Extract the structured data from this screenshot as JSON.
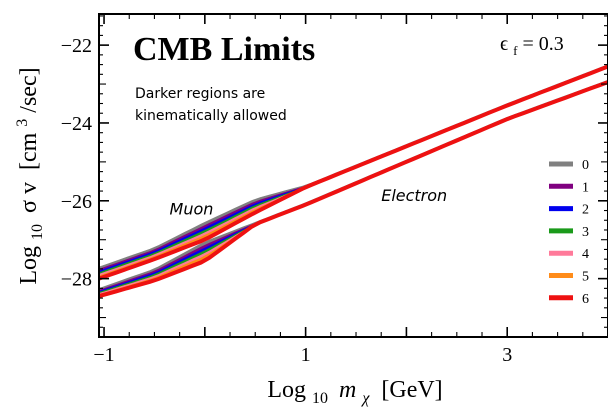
{
  "chart_data": {
    "type": "line",
    "title": "CMB Limits",
    "annotation_param": "ϵ",
    "annotation_param_sub": "f",
    "annotation_value": "= 0.3",
    "note_line1": "Darker regions are",
    "note_line2": "kinematically allowed",
    "region_labels": [
      {
        "text": "Muon",
        "x": -0.35,
        "y": -26.35
      },
      {
        "text": "Electron",
        "x": 1.75,
        "y": -26.0
      }
    ],
    "xlabel_prefix": "Log",
    "xlabel_sub": "10",
    "xlabel_var": "m",
    "xlabel_var_sub": "χ",
    "xlabel_unit": "[GeV]",
    "ylabel_prefix": "Log",
    "ylabel_sub": "10",
    "ylabel_var": "σ v",
    "ylabel_unit": "[cm",
    "ylabel_unit_sup": "3",
    "ylabel_unit_end": "/sec]",
    "xlim": [
      -1.05,
      4.0
    ],
    "ylim": [
      -29.5,
      -21.2
    ],
    "xticks": [
      {
        "value": -1,
        "label": "−1"
      },
      {
        "value": 1,
        "label": "1"
      },
      {
        "value": 3,
        "label": "3"
      }
    ],
    "yticks": [
      {
        "value": -22,
        "label": "−22"
      },
      {
        "value": -24,
        "label": "−24"
      },
      {
        "value": -26,
        "label": "−26"
      },
      {
        "value": -28,
        "label": "−28"
      }
    ],
    "legend_position": "right",
    "series": [
      {
        "name": "0",
        "color": "#808080"
      },
      {
        "name": "1",
        "color": "#800080"
      },
      {
        "name": "2",
        "color": "#0000ee"
      },
      {
        "name": "3",
        "color": "#1a9a1a"
      },
      {
        "name": "4",
        "color": "#ff7a9a"
      },
      {
        "name": "5",
        "color": "#ff8c1a"
      },
      {
        "name": "6",
        "color": "#ee1111"
      }
    ],
    "bands": [
      {
        "name": "Electron",
        "lower": [
          [
            -1.05,
            -28.45
          ],
          [
            -0.5,
            -28.05
          ],
          [
            0.0,
            -27.55
          ],
          [
            0.5,
            -26.6
          ],
          [
            1.0,
            -26.1
          ],
          [
            2.0,
            -25.0
          ],
          [
            3.0,
            -23.9
          ],
          [
            4.0,
            -22.95
          ]
        ],
        "upper": [
          [
            -1.05,
            -28.25
          ],
          [
            -0.5,
            -27.75
          ],
          [
            0.0,
            -27.05
          ],
          [
            0.5,
            -26.55
          ],
          [
            1.0,
            -26.05
          ],
          [
            2.0,
            -24.95
          ],
          [
            3.0,
            -23.85
          ],
          [
            4.0,
            -22.9
          ]
        ],
        "darkest_series": 2,
        "bottom_edge_series": 6
      },
      {
        "name": "Muon",
        "lower": [
          [
            -1.05,
            -28.0
          ],
          [
            -0.5,
            -27.5
          ],
          [
            0.0,
            -27.0
          ],
          [
            0.5,
            -26.3
          ],
          [
            1.0,
            -25.65
          ],
          [
            2.0,
            -24.6
          ],
          [
            3.0,
            -23.55
          ],
          [
            4.0,
            -22.55
          ]
        ],
        "upper": [
          [
            -1.05,
            -27.7
          ],
          [
            -0.5,
            -27.2
          ],
          [
            0.0,
            -26.55
          ],
          [
            0.5,
            -25.95
          ],
          [
            1.0,
            -25.6
          ],
          [
            2.0,
            -24.55
          ],
          [
            3.0,
            -23.5
          ],
          [
            4.0,
            -22.5
          ]
        ],
        "darkest_series": 0,
        "bottom_edge_series": 6
      }
    ]
  }
}
